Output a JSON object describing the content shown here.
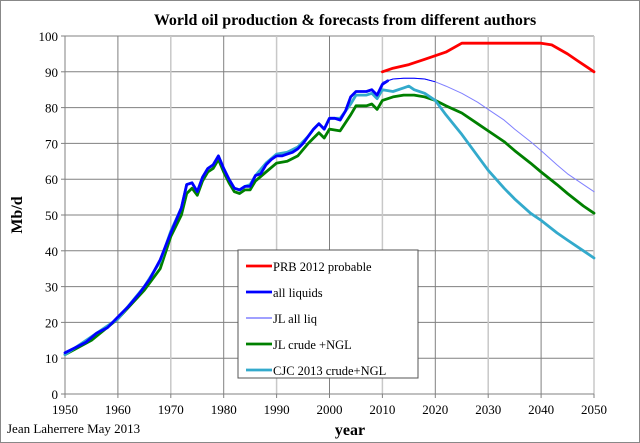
{
  "chart_data": {
    "type": "line",
    "title": "World oil production & forecasts from different authors",
    "xlabel": "year",
    "ylabel": "Mb/d",
    "xlim": [
      1950,
      2050
    ],
    "ylim": [
      0,
      100
    ],
    "xticks": [
      "1950",
      "1960",
      "1970",
      "1980",
      "1990",
      "2000",
      "2010",
      "2020",
      "2030",
      "2040",
      "2050"
    ],
    "yticks": [
      "0",
      "10",
      "20",
      "30",
      "40",
      "50",
      "60",
      "70",
      "80",
      "90",
      "100"
    ],
    "grid": true,
    "legend_position": "center-bottom",
    "credit": "Jean Laherrere May 2013",
    "series": [
      {
        "name": "PRB 2012 probable",
        "color": "#ff0000",
        "width": "thick",
        "x": [
          2010,
          2012,
          2015,
          2018,
          2020,
          2022,
          2025,
          2030,
          2035,
          2040,
          2042,
          2045,
          2047,
          2049,
          2050
        ],
        "y": [
          90,
          91,
          92,
          93.5,
          94.5,
          95.5,
          98,
          98,
          98,
          98,
          97.5,
          95,
          93,
          91,
          90
        ]
      },
      {
        "name": "all liquids",
        "color": "#0000ff",
        "width": "thick",
        "x": [
          1950,
          1952,
          1954,
          1956,
          1958,
          1960,
          1962,
          1964,
          1966,
          1968,
          1970,
          1972,
          1973,
          1974,
          1975,
          1976,
          1977,
          1978,
          1979,
          1980,
          1981,
          1982,
          1983,
          1984,
          1985,
          1986,
          1987,
          1988,
          1989,
          1990,
          1991,
          1992,
          1993,
          1994,
          1995,
          1996,
          1997,
          1998,
          1999,
          2000,
          2001,
          2002,
          2003,
          2004,
          2005,
          2006,
          2007,
          2008,
          2009,
          2010,
          2011
        ],
        "y": [
          11.5,
          13,
          14.5,
          17,
          18.5,
          21.5,
          24.5,
          28,
          32,
          37.5,
          45,
          52,
          58.5,
          59,
          56.5,
          60.5,
          63,
          64,
          66.5,
          63,
          60,
          57.5,
          57,
          58,
          58,
          61,
          61.5,
          64,
          65.5,
          66.5,
          66.5,
          67,
          67.5,
          68.5,
          70,
          72,
          74,
          75.5,
          74,
          77,
          77,
          76.5,
          79,
          83,
          84.5,
          84.5,
          84.5,
          85,
          83.5,
          86.5,
          87.5
        ]
      },
      {
        "name": "JL all liq",
        "color": "#8080ff",
        "width": "thin",
        "x": [
          2010,
          2012,
          2014,
          2016,
          2018,
          2020,
          2022,
          2025,
          2028,
          2030,
          2033,
          2035,
          2038,
          2040,
          2043,
          2045,
          2048,
          2050
        ],
        "y": [
          87,
          88,
          88.2,
          88.2,
          88,
          87.2,
          86,
          84,
          81.5,
          79.5,
          76.5,
          74,
          70.5,
          68,
          64,
          61.5,
          58.5,
          56.5
        ]
      },
      {
        "name": "JL crude +NGL",
        "color": "#008000",
        "width": "thick",
        "x": [
          1950,
          1955,
          1960,
          1965,
          1968,
          1970,
          1972,
          1973,
          1974,
          1975,
          1976,
          1977,
          1978,
          1979,
          1980,
          1981,
          1982,
          1983,
          1984,
          1985,
          1986,
          1988,
          1990,
          1992,
          1994,
          1996,
          1997,
          1998,
          1999,
          2000,
          2002,
          2004,
          2005,
          2007,
          2008,
          2009,
          2010,
          2012,
          2014,
          2016,
          2018,
          2020,
          2022,
          2025,
          2028,
          2030,
          2033,
          2035,
          2038,
          2040,
          2043,
          2045,
          2048,
          2050
        ],
        "y": [
          11,
          15,
          21,
          29,
          35,
          44,
          50,
          56,
          57.5,
          55.5,
          59.5,
          62,
          63,
          65.5,
          62,
          59,
          56.5,
          56,
          57,
          57,
          59.5,
          62,
          64.5,
          65,
          66.5,
          70,
          71.5,
          73,
          71.5,
          74,
          73.5,
          78,
          80.5,
          80.5,
          81,
          79.5,
          82,
          83,
          83.5,
          83.5,
          83,
          82,
          80.5,
          78.5,
          75.5,
          73.5,
          70.5,
          68,
          64.5,
          62,
          58.5,
          56,
          52.5,
          50.5
        ]
      },
      {
        "name": "CJC 2013 crude+NGL",
        "color": "#33aacc",
        "width": "thick",
        "x": [
          1950,
          1955,
          1960,
          1965,
          1968,
          1970,
          1972,
          1973,
          1974,
          1975,
          1976,
          1977,
          1978,
          1979,
          1980,
          1981,
          1982,
          1983,
          1984,
          1985,
          1986,
          1988,
          1990,
          1992,
          1994,
          1996,
          1997,
          1998,
          1999,
          2000,
          2002,
          2004,
          2005,
          2007,
          2008,
          2009,
          2010,
          2012,
          2014,
          2015,
          2016,
          2018,
          2020,
          2022,
          2025,
          2028,
          2030,
          2033,
          2035,
          2038,
          2040,
          2043,
          2045,
          2048,
          2050
        ],
        "y": [
          11,
          16,
          21,
          30,
          37,
          45.5,
          52,
          58.5,
          59,
          56.5,
          60.5,
          63,
          64,
          66.5,
          63,
          60,
          57.5,
          57,
          58,
          58.5,
          61,
          64.5,
          67,
          67.5,
          69,
          72,
          74,
          75.5,
          74,
          77,
          77,
          81,
          83.5,
          83.5,
          84,
          82.5,
          85,
          84.5,
          85.5,
          86,
          85,
          84,
          82,
          78,
          72.5,
          66.5,
          62.5,
          57.5,
          54.5,
          50.5,
          48.5,
          45,
          43,
          40,
          38
        ]
      }
    ]
  }
}
